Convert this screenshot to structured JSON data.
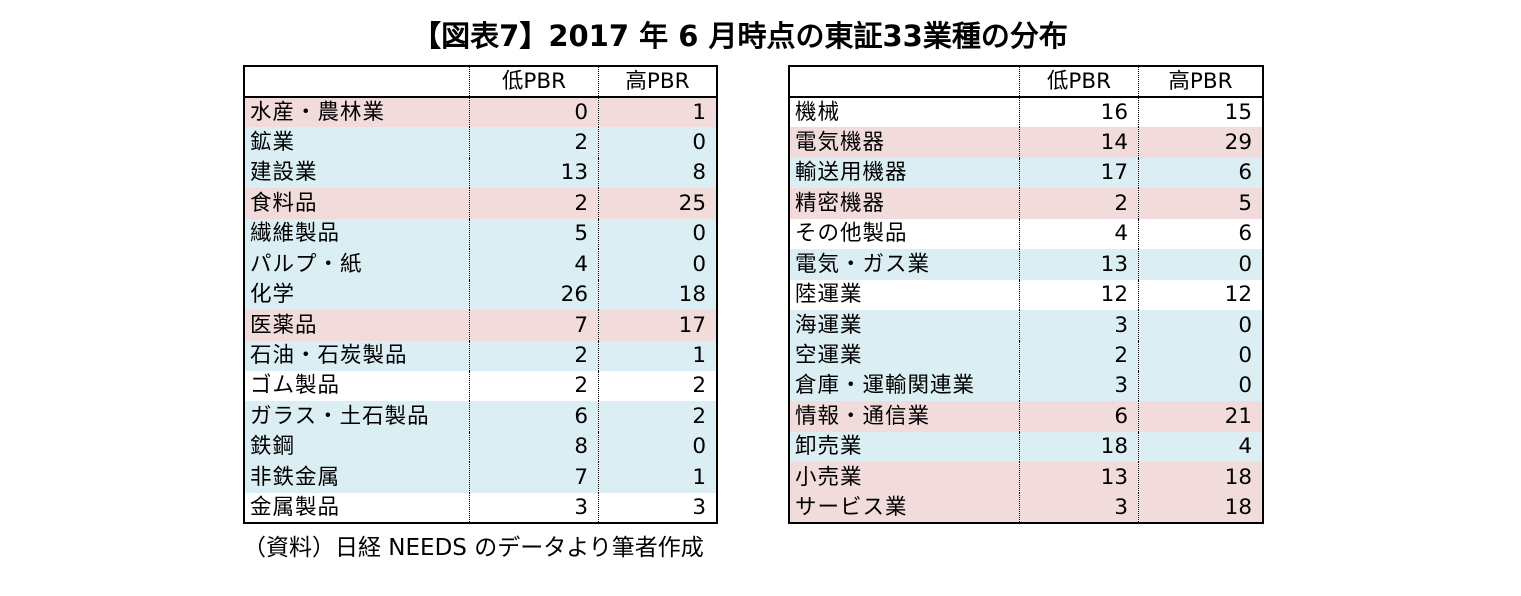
{
  "title": "【図表7】2017 年 6 月時点の東証33業種の分布",
  "caption": "（資料）日経 NEEDS のデータより筆者作成",
  "colors": {
    "row_pink": "#F2DCDB",
    "row_blue": "#DAEEF3",
    "row_white": "#FFFFFF",
    "border": "#000000",
    "text": "#000000"
  },
  "tables": [
    {
      "name": "industries-left",
      "columns": [
        "",
        "低PBR",
        "高PBR"
      ],
      "rows": [
        {
          "label": "水産・農林業",
          "low_pbr": "0",
          "high_pbr": "1",
          "highlight": "pink"
        },
        {
          "label": "鉱業",
          "low_pbr": "2",
          "high_pbr": "0",
          "highlight": "blue"
        },
        {
          "label": "建設業",
          "low_pbr": "13",
          "high_pbr": "8",
          "highlight": "blue"
        },
        {
          "label": "食料品",
          "low_pbr": "2",
          "high_pbr": "25",
          "highlight": "pink"
        },
        {
          "label": "繊維製品",
          "low_pbr": "5",
          "high_pbr": "0",
          "highlight": "blue"
        },
        {
          "label": "パルプ・紙",
          "low_pbr": "4",
          "high_pbr": "0",
          "highlight": "blue"
        },
        {
          "label": "化学",
          "low_pbr": "26",
          "high_pbr": "18",
          "highlight": "blue"
        },
        {
          "label": "医薬品",
          "low_pbr": "7",
          "high_pbr": "17",
          "highlight": "pink"
        },
        {
          "label": "石油・石炭製品",
          "low_pbr": "2",
          "high_pbr": "1",
          "highlight": "blue"
        },
        {
          "label": "ゴム製品",
          "low_pbr": "2",
          "high_pbr": "2",
          "highlight": "white"
        },
        {
          "label": "ガラス・土石製品",
          "low_pbr": "6",
          "high_pbr": "2",
          "highlight": "blue"
        },
        {
          "label": "鉄鋼",
          "low_pbr": "8",
          "high_pbr": "0",
          "highlight": "blue"
        },
        {
          "label": "非鉄金属",
          "low_pbr": "7",
          "high_pbr": "1",
          "highlight": "blue"
        },
        {
          "label": "金属製品",
          "low_pbr": "3",
          "high_pbr": "3",
          "highlight": "white"
        }
      ]
    },
    {
      "name": "industries-right",
      "columns": [
        "",
        "低PBR",
        "高PBR"
      ],
      "rows": [
        {
          "label": "機械",
          "low_pbr": "16",
          "high_pbr": "15",
          "highlight": "white"
        },
        {
          "label": "電気機器",
          "low_pbr": "14",
          "high_pbr": "29",
          "highlight": "pink"
        },
        {
          "label": "輸送用機器",
          "low_pbr": "17",
          "high_pbr": "6",
          "highlight": "blue"
        },
        {
          "label": "精密機器",
          "low_pbr": "2",
          "high_pbr": "5",
          "highlight": "pink"
        },
        {
          "label": "その他製品",
          "low_pbr": "4",
          "high_pbr": "6",
          "highlight": "white"
        },
        {
          "label": "電気・ガス業",
          "low_pbr": "13",
          "high_pbr": "0",
          "highlight": "blue"
        },
        {
          "label": "陸運業",
          "low_pbr": "12",
          "high_pbr": "12",
          "highlight": "white"
        },
        {
          "label": "海運業",
          "low_pbr": "3",
          "high_pbr": "0",
          "highlight": "blue"
        },
        {
          "label": "空運業",
          "low_pbr": "2",
          "high_pbr": "0",
          "highlight": "blue"
        },
        {
          "label": "倉庫・運輸関連業",
          "low_pbr": "3",
          "high_pbr": "0",
          "highlight": "blue"
        },
        {
          "label": "情報・通信業",
          "low_pbr": "6",
          "high_pbr": "21",
          "highlight": "pink"
        },
        {
          "label": "卸売業",
          "low_pbr": "18",
          "high_pbr": "4",
          "highlight": "blue"
        },
        {
          "label": "小売業",
          "low_pbr": "13",
          "high_pbr": "18",
          "highlight": "pink"
        },
        {
          "label": "サービス業",
          "low_pbr": "3",
          "high_pbr": "18",
          "highlight": "pink"
        }
      ]
    }
  ]
}
